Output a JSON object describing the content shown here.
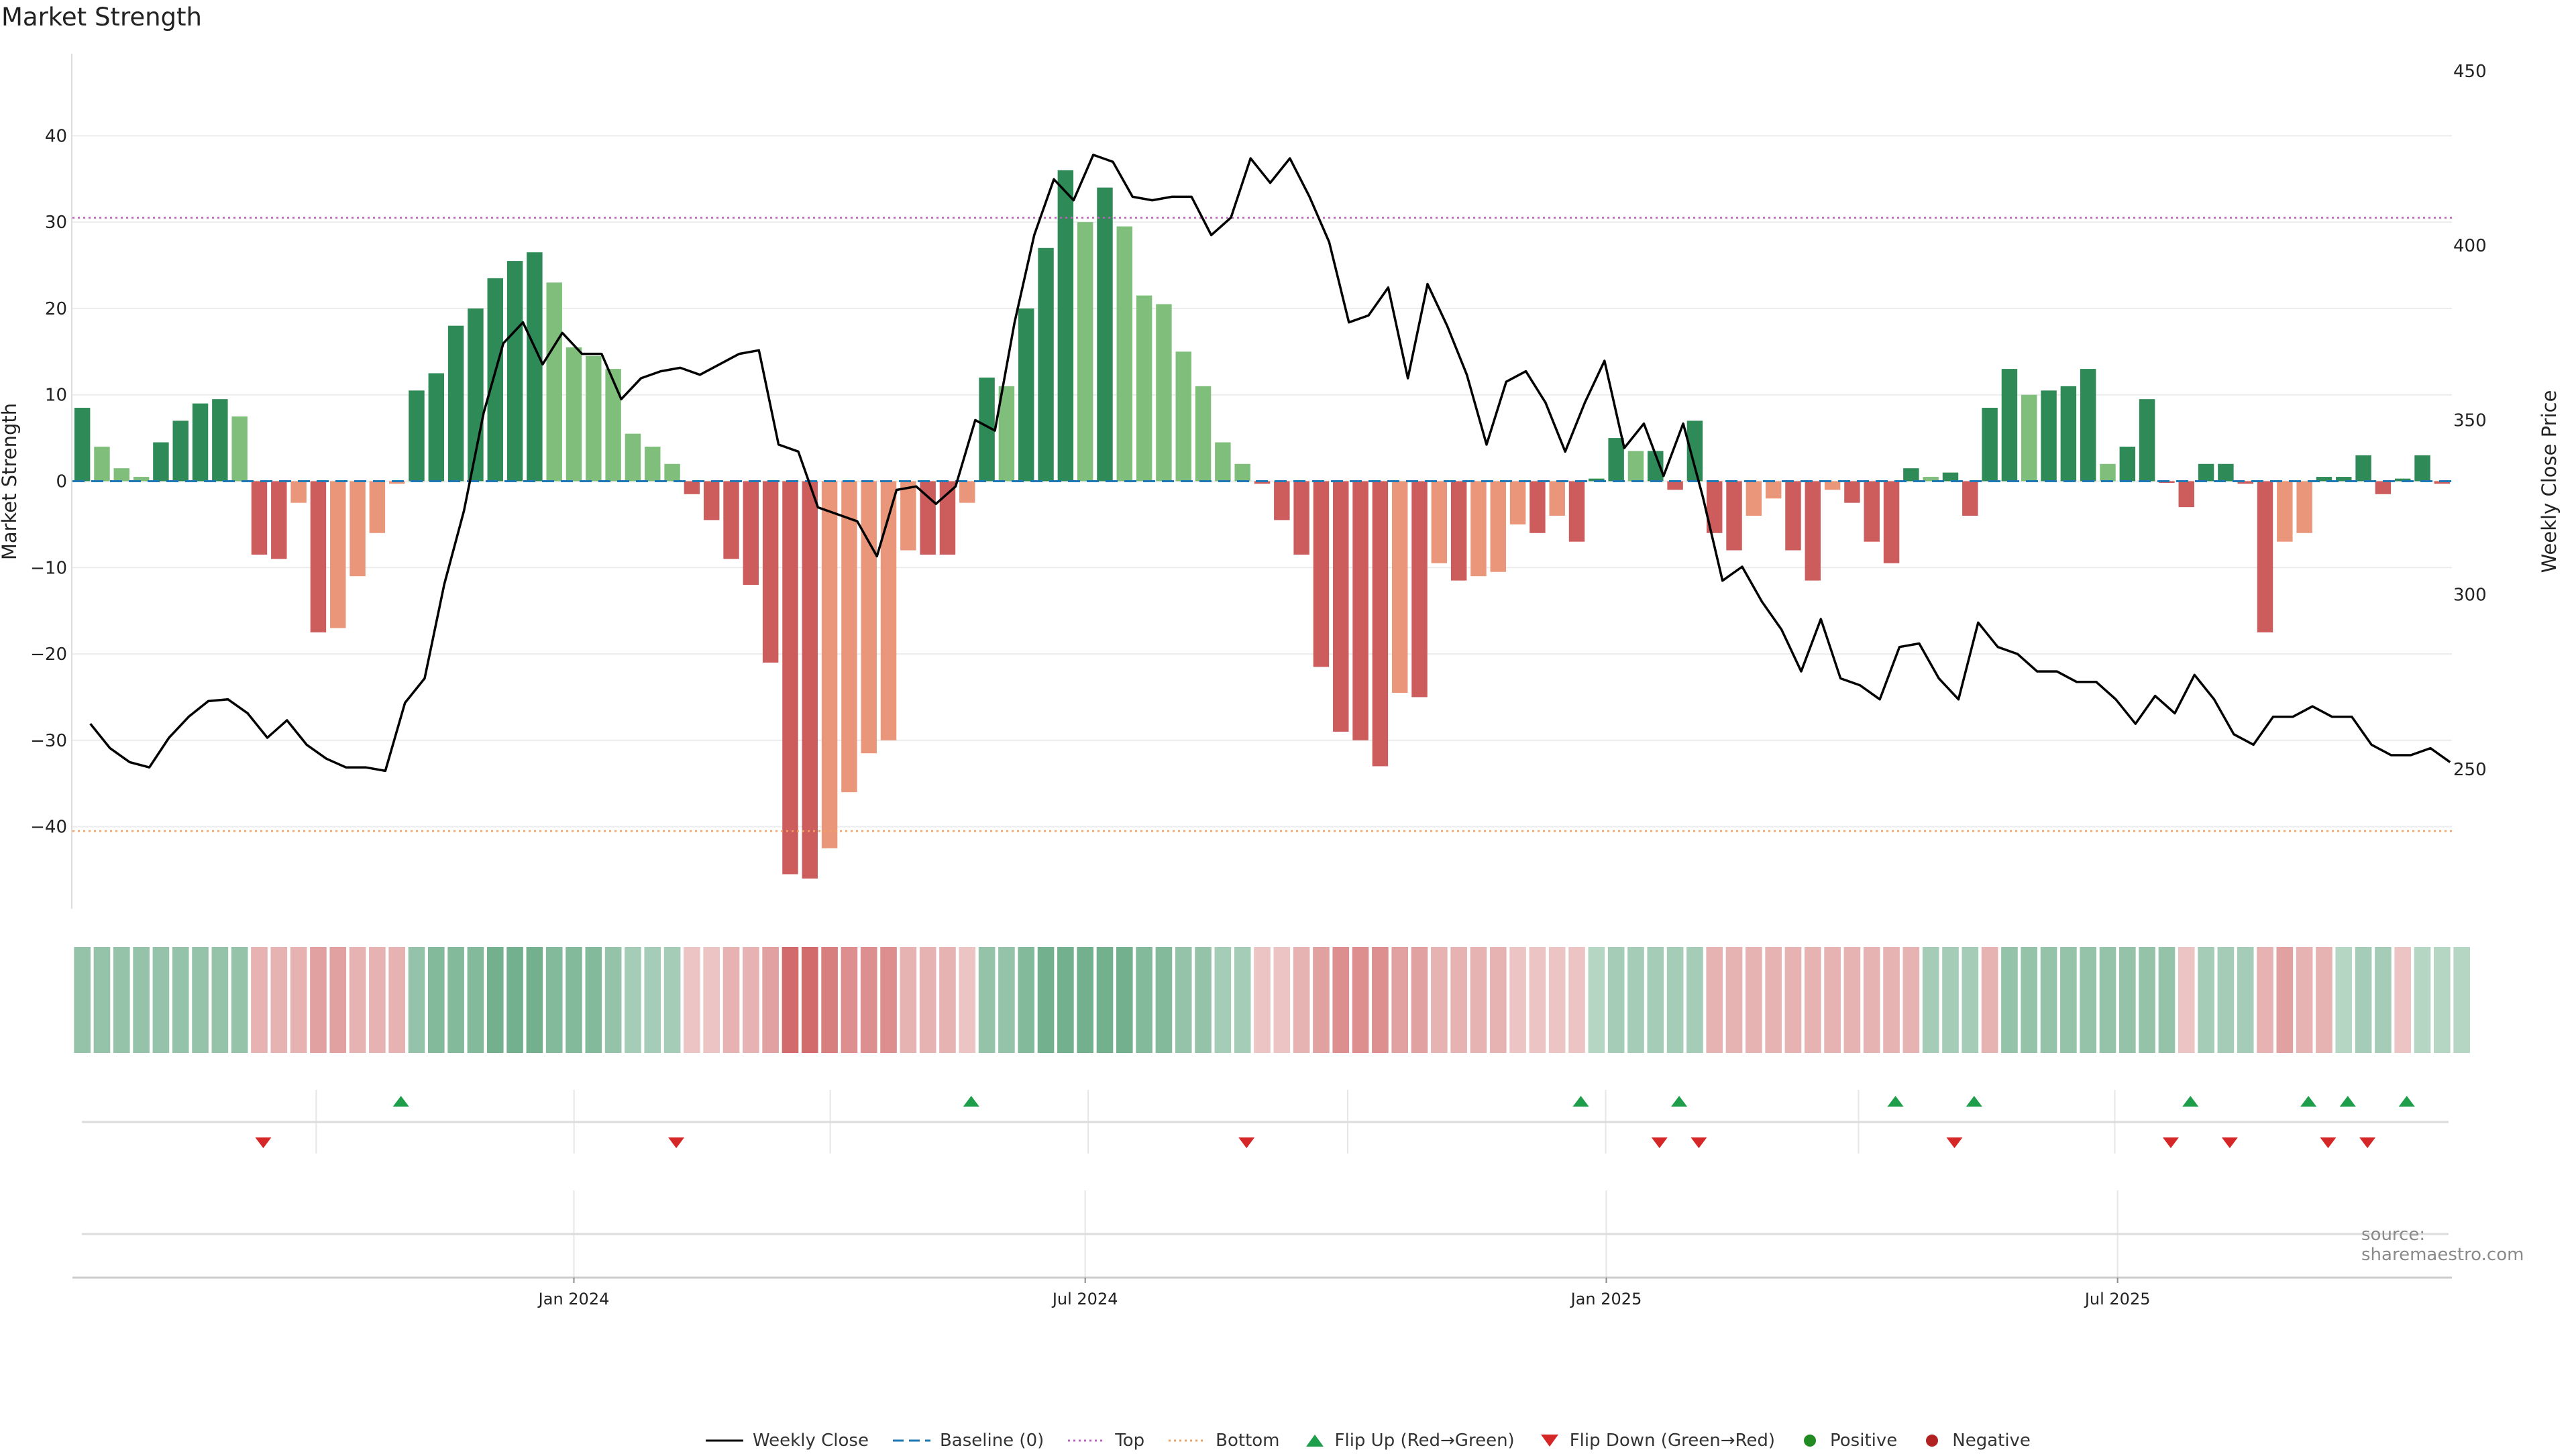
{
  "title": "Market Strength",
  "source": "source: sharemaestro.com",
  "legend": {
    "weekly_close": "Weekly Close",
    "baseline": "Baseline (0)",
    "top": "Top",
    "bottom": "Bottom",
    "flip_up": "Flip Up (Red→Green)",
    "flip_down": "Flip Down (Green→Red)",
    "positive": "Positive",
    "negative": "Negative"
  },
  "colors": {
    "strong_green": "#2e8b57",
    "light_green": "#7fbf7b",
    "strong_red": "#cd5c5c",
    "light_red": "#e9967a",
    "price_line": "#000000",
    "baseline": "#1f77b4",
    "top": "#c060c0",
    "bottom": "#f0a060",
    "flip_up": "#1e9e4a",
    "flip_down": "#d62728",
    "positive_dot": "#228b22",
    "negative_dot": "#b22222"
  },
  "chart_data": {
    "type": "bar",
    "ylabel_left": "Market Strength",
    "ylabel_right": "Weekly Close Price",
    "ylim_left": [
      -49.5,
      49.5
    ],
    "ylim_right": [
      210,
      455
    ],
    "yticks_left": [
      "40",
      "30",
      "20",
      "10",
      "0",
      "−10",
      "−20",
      "−30",
      "−40"
    ],
    "yticks_left_values": [
      40,
      30,
      20,
      10,
      0,
      -10,
      -20,
      -30,
      -40
    ],
    "yticks_right": [
      "450",
      "400",
      "350",
      "300",
      "250"
    ],
    "yticks_right_values": [
      450,
      400,
      350,
      300,
      250
    ],
    "xticks": [
      "Jan 2024",
      "Jul 2024",
      "Jan 2025",
      "Jul 2025"
    ],
    "xticks_index": [
      25,
      51,
      77.5,
      103.5
    ],
    "top_line": 30.5,
    "bottom_line": -40.5,
    "grid": true,
    "legend_position": "bottom",
    "strength": [
      8.5,
      4,
      1.5,
      0.5,
      4.5,
      7,
      9,
      9.5,
      7.5,
      -8.5,
      -9,
      -2.5,
      -17.5,
      -17,
      -11,
      -6,
      -0.3,
      10.5,
      12.5,
      18,
      20,
      23.5,
      25.5,
      26.5,
      23,
      15.5,
      14.5,
      13,
      5.5,
      4,
      2,
      -1.5,
      -4.5,
      -9,
      -12,
      -21,
      -45.5,
      -46,
      -42.5,
      -36,
      -31.5,
      -30,
      -8,
      -8.5,
      -8.5,
      -2.5,
      12,
      11,
      20,
      27,
      36,
      30,
      34,
      29.5,
      21.5,
      20.5,
      15,
      11,
      4.5,
      2,
      -0.3,
      -4.5,
      -8.5,
      -21.5,
      -29,
      -30,
      -33,
      -24.5,
      -25,
      -9.5,
      -11.5,
      -11,
      -10.5,
      -5,
      -6,
      -4,
      -7,
      0.3,
      5,
      3.5,
      3.5,
      -1,
      7,
      -6,
      -8,
      -4,
      -2,
      -8,
      -11.5,
      -1,
      -2.5,
      -7,
      -9.5,
      1.5,
      0.5,
      1,
      -4,
      8.5,
      13,
      10,
      10.5,
      11,
      13,
      2,
      4,
      9.5,
      -0.2,
      -3,
      2,
      2,
      -0.3,
      -17.5,
      -7,
      -6,
      0.5,
      0.5,
      3,
      -1.5,
      0.3,
      3,
      -0.3
    ],
    "price": [
      263,
      256,
      252,
      250.5,
      259,
      265,
      269.5,
      270,
      266,
      259,
      264,
      257,
      253,
      250.5,
      250.5,
      249.5,
      269,
      276,
      303,
      324,
      352,
      372,
      378,
      366,
      375,
      369,
      369,
      356,
      362,
      364,
      365,
      363,
      366,
      369,
      370,
      343,
      341,
      325,
      323,
      321,
      311,
      330,
      331,
      326,
      331,
      350,
      347,
      378,
      403,
      419,
      413,
      426,
      424,
      414,
      413,
      414,
      414,
      403,
      408,
      425,
      418,
      425,
      414,
      401,
      378,
      380,
      388,
      362,
      389,
      377,
      363,
      343,
      361,
      364,
      355,
      341,
      355,
      367,
      342,
      349,
      334,
      349,
      328,
      304,
      308,
      298,
      290,
      278,
      293,
      276,
      274,
      270,
      285,
      286,
      276,
      270,
      292,
      285,
      283,
      278,
      278,
      275,
      275,
      270,
      263,
      271,
      266,
      277,
      270,
      260,
      257,
      265,
      265,
      268,
      265,
      265,
      257,
      254,
      254,
      256,
      252
    ],
    "heat_strength": [
      4,
      4,
      4,
      4,
      4,
      4,
      4,
      4,
      4,
      -3,
      -3,
      -3,
      -4,
      -4,
      -3,
      -3,
      -3,
      4,
      5,
      5,
      5,
      6,
      6,
      6,
      5,
      5,
      5,
      4,
      3,
      3,
      3,
      -2,
      -2,
      -3,
      -3,
      -4,
      -7,
      -7,
      -6,
      -5,
      -5,
      -5,
      -3,
      -3,
      -3,
      -2,
      4,
      4,
      5,
      6,
      6,
      6,
      6,
      6,
      5,
      5,
      4,
      4,
      3,
      3,
      -2,
      -2,
      -3,
      -4,
      -5,
      -5,
      -5,
      -4,
      -4,
      -3,
      -3,
      -3,
      -3,
      -2,
      -2,
      -2,
      -2,
      2,
      3,
      3,
      3,
      3,
      3,
      -3,
      -3,
      -3,
      -3,
      -3,
      -3,
      -3,
      -3,
      -3,
      -3,
      -3,
      3,
      3,
      3,
      -3,
      4,
      4,
      4,
      4,
      4,
      4,
      4,
      4,
      4,
      -2,
      3,
      3,
      3,
      -3,
      -4,
      -3,
      -3,
      2,
      3,
      3,
      -2,
      2,
      2,
      2
    ],
    "flip_up_index": [
      16,
      45,
      76,
      81,
      92,
      96,
      107,
      113,
      115,
      118
    ],
    "flip_down_index": [
      9,
      30,
      59,
      80,
      82,
      95,
      106,
      109,
      114,
      116
    ],
    "positive_index": [],
    "negative_index": []
  }
}
